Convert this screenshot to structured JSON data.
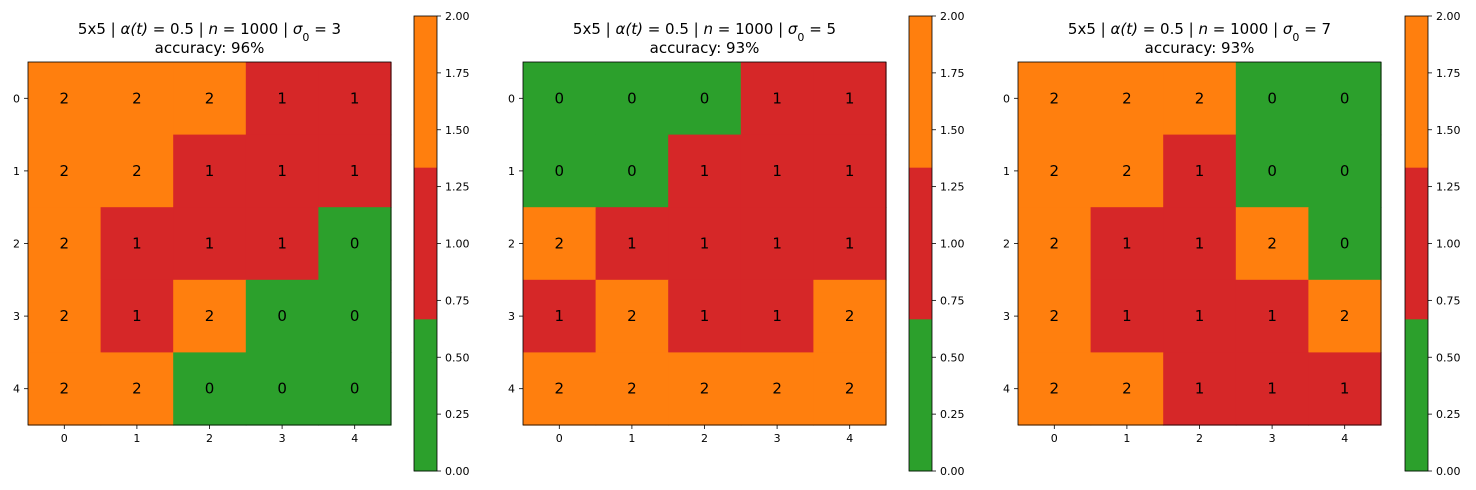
{
  "colors": {
    "0": "#2ca02c",
    "1": "#d62728",
    "2": "#ff7f0e"
  },
  "chart_data": [
    {
      "type": "heatmap",
      "title_line1_parts": [
        "5x5 | ",
        "α(t)",
        " = 0.5 | ",
        "n",
        " = 1000 | ",
        "σ",
        "0",
        " = 3"
      ],
      "title_line2": "accuracy: 96%",
      "x_ticks": [
        "0",
        "1",
        "2",
        "3",
        "4"
      ],
      "y_ticks": [
        "0",
        "1",
        "2",
        "3",
        "4"
      ],
      "matrix": [
        [
          2,
          2,
          2,
          1,
          1
        ],
        [
          2,
          2,
          1,
          1,
          1
        ],
        [
          2,
          1,
          1,
          1,
          0
        ],
        [
          2,
          1,
          2,
          0,
          0
        ],
        [
          2,
          2,
          0,
          0,
          0
        ]
      ],
      "colorbar": {
        "range": [
          0,
          2
        ],
        "ticks": [
          "0.00",
          "0.25",
          "0.50",
          "0.75",
          "1.00",
          "1.25",
          "1.50",
          "1.75",
          "2.00"
        ]
      }
    },
    {
      "type": "heatmap",
      "title_line1_parts": [
        "5x5 | ",
        "α(t)",
        " = 0.5 | ",
        "n",
        " = 1000 | ",
        "σ",
        "0",
        " = 5"
      ],
      "title_line2": "accuracy: 93%",
      "x_ticks": [
        "0",
        "1",
        "2",
        "3",
        "4"
      ],
      "y_ticks": [
        "0",
        "1",
        "2",
        "3",
        "4"
      ],
      "matrix": [
        [
          0,
          0,
          0,
          1,
          1
        ],
        [
          0,
          0,
          1,
          1,
          1
        ],
        [
          2,
          1,
          1,
          1,
          1
        ],
        [
          1,
          2,
          1,
          1,
          2
        ],
        [
          2,
          2,
          2,
          2,
          2
        ]
      ],
      "colorbar": {
        "range": [
          0,
          2
        ],
        "ticks": [
          "0.00",
          "0.25",
          "0.50",
          "0.75",
          "1.00",
          "1.25",
          "1.50",
          "1.75",
          "2.00"
        ]
      }
    },
    {
      "type": "heatmap",
      "title_line1_parts": [
        "5x5 | ",
        "α(t)",
        " = 0.5 | ",
        "n",
        " = 1000 | ",
        "σ",
        "0",
        " = 7"
      ],
      "title_line2": "accuracy: 93%",
      "x_ticks": [
        "0",
        "1",
        "2",
        "3",
        "4"
      ],
      "y_ticks": [
        "0",
        "1",
        "2",
        "3",
        "4"
      ],
      "matrix": [
        [
          2,
          2,
          2,
          0,
          0
        ],
        [
          2,
          2,
          1,
          0,
          0
        ],
        [
          2,
          1,
          1,
          2,
          0
        ],
        [
          2,
          1,
          1,
          1,
          2
        ],
        [
          2,
          2,
          1,
          1,
          1
        ]
      ],
      "colorbar": {
        "range": [
          0,
          2
        ],
        "ticks": [
          "0.00",
          "0.25",
          "0.50",
          "0.75",
          "1.00",
          "1.25",
          "1.50",
          "1.75",
          "2.00"
        ]
      }
    }
  ]
}
